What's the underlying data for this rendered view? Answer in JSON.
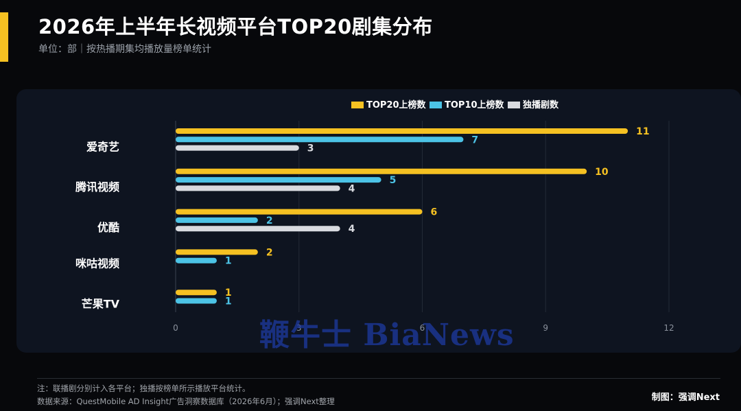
{
  "header": {
    "title": "2026年上半年长视频平台TOP20剧集分布",
    "subtitle": "单位：部｜按热播期集均播放量榜单统计"
  },
  "footer": {
    "note": "注：联播剧分别计入各平台；独播按榜单所示播放平台统计。",
    "source": "数据来源：QuestMobile AD Insight广告洞察数据库（2026年6月）；强调Next整理",
    "credit": "制图：强调Next"
  },
  "watermark": "鞭牛士 BiaNews",
  "colors": {
    "background": "#07080b",
    "panel": "#0e1420",
    "accent": "#f5c122",
    "top20": "#f5c122",
    "top10": "#4cc3e6",
    "exclusive": "#d9dbe0"
  },
  "chart_data": {
    "type": "bar",
    "orientation": "horizontal",
    "categories": [
      "爱奇艺",
      "腾讯视频",
      "优酷",
      "咪咕视频",
      "芒果TV"
    ],
    "series": [
      {
        "name": "TOP20上榜数",
        "values": [
          11,
          10,
          6,
          2,
          1
        ],
        "color": "#f5c122"
      },
      {
        "name": "TOP10上榜数",
        "values": [
          7,
          5,
          2,
          1,
          1
        ],
        "color": "#4cc3e6"
      },
      {
        "name": "独播剧数",
        "values": [
          3,
          4,
          4,
          null,
          null
        ],
        "color": "#d9dbe0"
      }
    ],
    "xlim": [
      0,
      12
    ],
    "xticks": [
      0,
      3,
      6,
      9,
      12
    ],
    "grid": "vertical",
    "legend_position": "top"
  }
}
